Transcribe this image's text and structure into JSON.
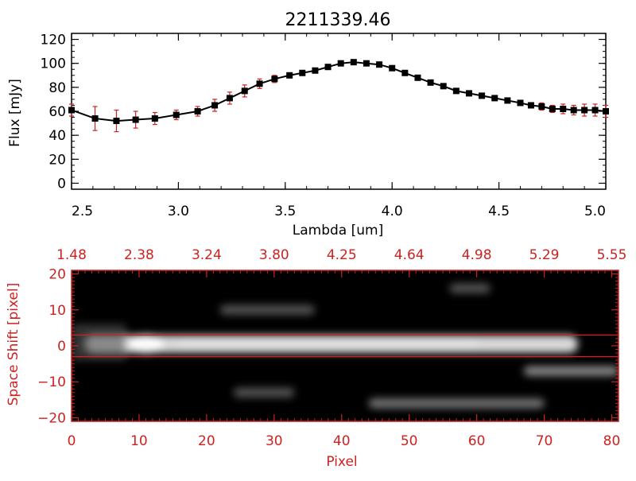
{
  "colors": {
    "axis_top": "#000000",
    "axis_bottom": "#cc2222",
    "marker": "#000000",
    "errorbar": "#cc2222",
    "image_bg": "#000000",
    "overlay_lines": "#cc2222"
  },
  "chart_data": [
    {
      "type": "line",
      "title": "2211339.46",
      "xlabel": "Lambda [um]",
      "ylabel": "Flux [mJy]",
      "xlim": [
        2.5,
        5.0
      ],
      "ylim": [
        -5,
        125
      ],
      "xticks": [
        2.5,
        3.0,
        3.5,
        4.0,
        4.5,
        5.0
      ],
      "xtick_labels": [
        "2.5",
        "3.0",
        "3.5",
        "4.0",
        "4.5",
        "5.0"
      ],
      "yticks": [
        0,
        20,
        40,
        60,
        80,
        100,
        120
      ],
      "ytick_labels": [
        "0",
        "20",
        "40",
        "60",
        "80",
        "100",
        "120"
      ],
      "grid": false,
      "series": [
        {
          "x": [
            2.5,
            2.61,
            2.71,
            2.8,
            2.89,
            2.99,
            3.09,
            3.17,
            3.24,
            3.31,
            3.38,
            3.45,
            3.52,
            3.58,
            3.64,
            3.7,
            3.76,
            3.82,
            3.88,
            3.94,
            4.0,
            4.06,
            4.12,
            4.18,
            4.24,
            4.3,
            4.36,
            4.42,
            4.48,
            4.54,
            4.6,
            4.65,
            4.7,
            4.75,
            4.8,
            4.85,
            4.9,
            4.95,
            5.0
          ],
          "y": [
            61,
            54,
            52,
            53,
            54,
            57,
            60,
            65,
            71,
            77,
            83,
            87,
            90,
            92,
            94,
            97,
            100,
            101,
            100,
            99,
            96,
            92,
            88,
            84,
            81,
            77,
            75,
            73,
            71,
            69,
            67,
            65,
            64,
            62,
            62,
            61,
            61,
            61,
            60
          ],
          "yerr": [
            5,
            10,
            9,
            7,
            5,
            4,
            4,
            5,
            5,
            5,
            4,
            3,
            2,
            2,
            2,
            2,
            2,
            2,
            2,
            2,
            2,
            2,
            2,
            2,
            2,
            2,
            2,
            2,
            2,
            2,
            2,
            2,
            3,
            3,
            4,
            4,
            5,
            5,
            5
          ]
        }
      ]
    },
    {
      "type": "heatmap",
      "xlabel": "Pixel",
      "ylabel": "Space Shift [pixel]",
      "xlim": [
        0,
        81
      ],
      "ylim": [
        -21,
        21
      ],
      "xticks": [
        0,
        10,
        20,
        30,
        40,
        50,
        60,
        70,
        80
      ],
      "xtick_labels": [
        "0",
        "10",
        "20",
        "30",
        "40",
        "50",
        "60",
        "70",
        "80"
      ],
      "yticks": [
        -20,
        -10,
        0,
        10,
        20
      ],
      "ytick_labels": [
        "−20",
        "−10",
        "0",
        "10",
        "20"
      ],
      "top_axis_labels": [
        "1.48",
        "2.38",
        "3.24",
        "3.80",
        "4.25",
        "4.64",
        "4.98",
        "5.29",
        "5.55"
      ],
      "extraction_aperture": [
        -3,
        3
      ],
      "sources": [
        {
          "label": "main trace",
          "x_range": [
            2,
            75
          ],
          "y": 0.5,
          "peak": 1.0
        },
        {
          "label": "companion",
          "x_range": [
            67,
            81
          ],
          "y": -7,
          "peak": 0.7
        },
        {
          "label": "blob",
          "x_range": [
            44,
            70
          ],
          "y": -16,
          "peak": 0.55
        },
        {
          "label": "blob",
          "x_range": [
            22,
            36
          ],
          "y": 10,
          "peak": 0.3
        },
        {
          "label": "blob",
          "x_range": [
            24,
            33
          ],
          "y": -13,
          "peak": 0.3
        },
        {
          "label": "blob",
          "x_range": [
            56,
            62
          ],
          "y": 16,
          "peak": 0.3
        }
      ]
    }
  ]
}
